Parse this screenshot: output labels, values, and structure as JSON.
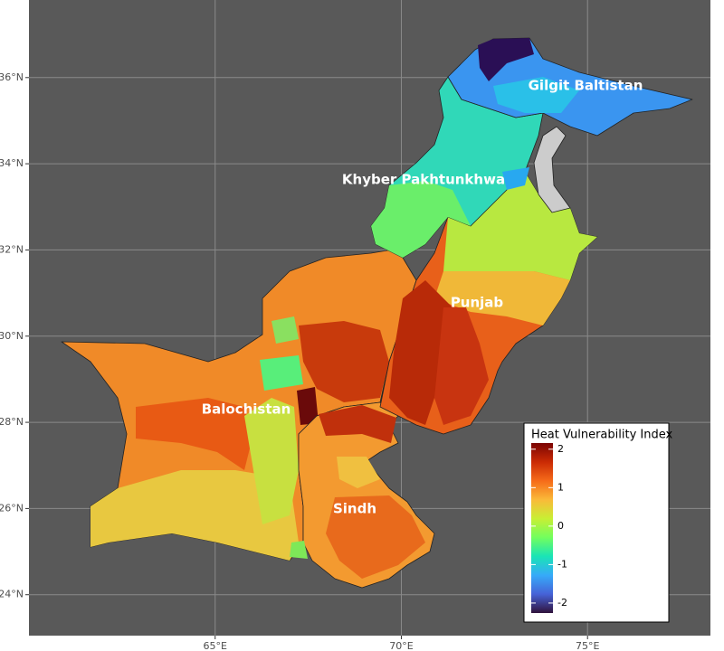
{
  "map": {
    "xlim": [
      60.0,
      78.3
    ],
    "ylim": [
      23.05,
      37.8
    ],
    "xticks": [
      {
        "value": 65,
        "label": "65°E"
      },
      {
        "value": 70,
        "label": "70°E"
      },
      {
        "value": 75,
        "label": "75°E"
      }
    ],
    "yticks": [
      {
        "value": 24,
        "label": "24°N"
      },
      {
        "value": 26,
        "label": "26°N"
      },
      {
        "value": 28,
        "label": "28°N"
      },
      {
        "value": 30,
        "label": "30°N"
      },
      {
        "value": 32,
        "label": "32°N"
      },
      {
        "value": 34,
        "label": "34°N"
      },
      {
        "value": 36,
        "label": "36°N"
      }
    ],
    "grid": true,
    "region_labels": [
      "Gilgit Baltistan",
      "Khyber Pakhtunkhwa",
      "Punjab",
      "Balochistan",
      "Sindh"
    ],
    "legend": {
      "title": "Heat Vulnerability Index",
      "lim": [
        -2.26,
        2.16
      ],
      "ticks": [
        -2,
        -1,
        0,
        1,
        2
      ],
      "colors": [
        "#30123b",
        "#4662d7",
        "#36aaf9",
        "#1ae4b6",
        "#72fe5e",
        "#c8ef34",
        "#faba39",
        "#f66b19",
        "#ca2a04",
        "#7a0403"
      ]
    }
  }
}
